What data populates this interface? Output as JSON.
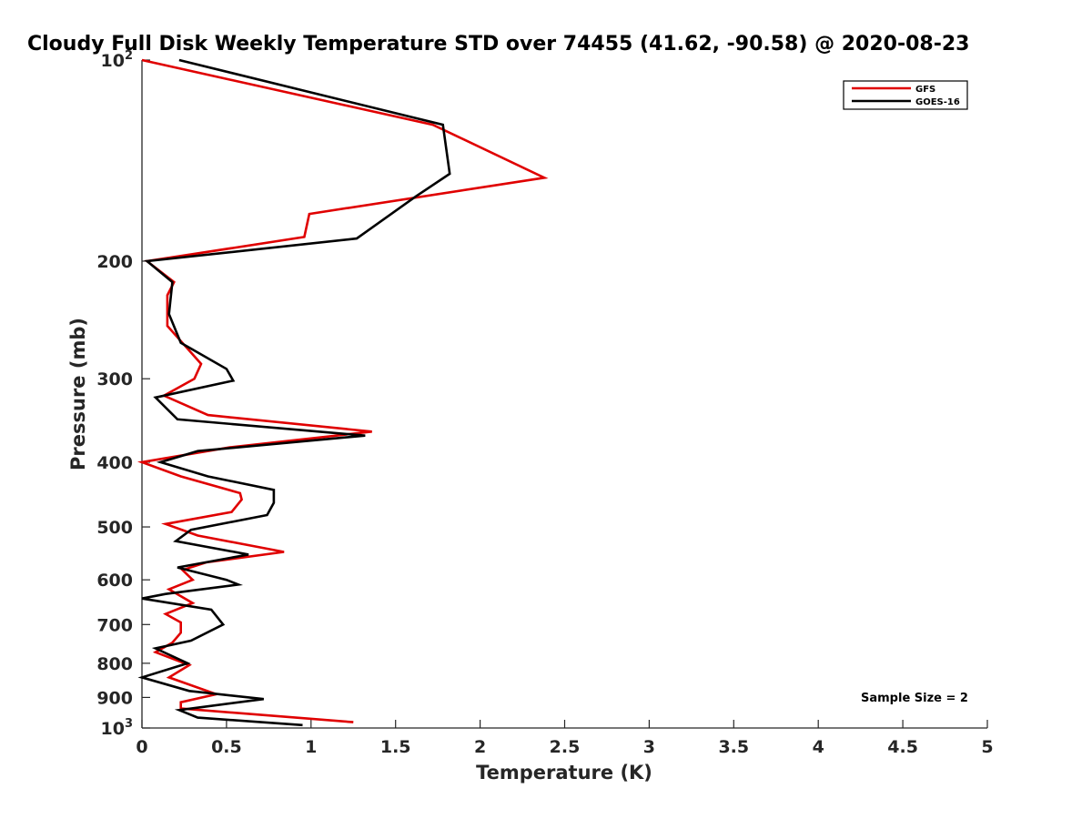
{
  "chart_data": {
    "type": "line",
    "title": "Cloudy Full Disk Weekly Temperature STD over 74455 (41.62, -90.58) @ 2020-08-23",
    "xlabel": "Temperature (K)",
    "ylabel": "Pressure (mb)",
    "xlim": [
      0,
      5
    ],
    "ylim": [
      100,
      1000
    ],
    "y_scale": "log",
    "y_reversed": true,
    "grid": false,
    "legend_position": "top-right",
    "x_ticks": [
      "0",
      "0.5",
      "1",
      "1.5",
      "2",
      "2.5",
      "3",
      "3.5",
      "4",
      "4.5",
      "5"
    ],
    "x_tick_values": [
      0,
      0.5,
      1,
      1.5,
      2,
      2.5,
      3,
      3.5,
      4,
      4.5,
      5
    ],
    "y_ticks": [
      {
        "value": 100,
        "base": "10",
        "exp": "2"
      },
      {
        "value": 200,
        "base": "200",
        "exp": ""
      },
      {
        "value": 300,
        "base": "300",
        "exp": ""
      },
      {
        "value": 400,
        "base": "400",
        "exp": ""
      },
      {
        "value": 500,
        "base": "500",
        "exp": ""
      },
      {
        "value": 600,
        "base": "600",
        "exp": ""
      },
      {
        "value": 700,
        "base": "700",
        "exp": ""
      },
      {
        "value": 800,
        "base": "800",
        "exp": ""
      },
      {
        "value": 900,
        "base": "900",
        "exp": ""
      },
      {
        "value": 1000,
        "base": "10",
        "exp": "3"
      }
    ],
    "annotation": "Sample Size = 2",
    "series": [
      {
        "name": "GFS",
        "color": "#e00000",
        "points": [
          [
            0.0,
            100
          ],
          [
            1.72,
            125
          ],
          [
            2.38,
            150
          ],
          [
            0.99,
            170
          ],
          [
            0.96,
            184
          ],
          [
            0.03,
            200
          ],
          [
            0.19,
            215
          ],
          [
            0.15,
            225
          ],
          [
            0.15,
            250
          ],
          [
            0.35,
            285
          ],
          [
            0.31,
            300
          ],
          [
            0.13,
            318
          ],
          [
            0.39,
            340
          ],
          [
            1.36,
            360
          ],
          [
            0.52,
            380
          ],
          [
            0.0,
            400
          ],
          [
            0.23,
            420
          ],
          [
            0.58,
            445
          ],
          [
            0.59,
            455
          ],
          [
            0.53,
            475
          ],
          [
            0.14,
            495
          ],
          [
            0.33,
            515
          ],
          [
            0.84,
            545
          ],
          [
            0.38,
            565
          ],
          [
            0.24,
            580
          ],
          [
            0.3,
            600
          ],
          [
            0.16,
            620
          ],
          [
            0.3,
            650
          ],
          [
            0.14,
            675
          ],
          [
            0.23,
            695
          ],
          [
            0.23,
            720
          ],
          [
            0.18,
            745
          ],
          [
            0.08,
            770
          ],
          [
            0.28,
            805
          ],
          [
            0.16,
            840
          ],
          [
            0.44,
            890
          ],
          [
            0.23,
            915
          ],
          [
            0.23,
            935
          ],
          [
            1.25,
            980
          ]
        ]
      },
      {
        "name": "GOES-16",
        "color": "#000000",
        "points": [
          [
            0.22,
            100
          ],
          [
            1.78,
            125
          ],
          [
            1.82,
            148
          ],
          [
            1.62,
            160
          ],
          [
            1.27,
            185
          ],
          [
            0.03,
            200
          ],
          [
            0.18,
            215
          ],
          [
            0.16,
            240
          ],
          [
            0.23,
            265
          ],
          [
            0.5,
            290
          ],
          [
            0.54,
            302
          ],
          [
            0.08,
            320
          ],
          [
            0.21,
            345
          ],
          [
            1.32,
            365
          ],
          [
            0.33,
            385
          ],
          [
            0.11,
            400
          ],
          [
            0.39,
            420
          ],
          [
            0.78,
            440
          ],
          [
            0.78,
            460
          ],
          [
            0.74,
            480
          ],
          [
            0.29,
            505
          ],
          [
            0.2,
            525
          ],
          [
            0.63,
            550
          ],
          [
            0.21,
            575
          ],
          [
            0.5,
            600
          ],
          [
            0.57,
            610
          ],
          [
            0.14,
            630
          ],
          [
            0.0,
            640
          ],
          [
            0.41,
            665
          ],
          [
            0.48,
            700
          ],
          [
            0.29,
            740
          ],
          [
            0.08,
            760
          ],
          [
            0.27,
            800
          ],
          [
            0.0,
            840
          ],
          [
            0.28,
            880
          ],
          [
            0.72,
            905
          ],
          [
            0.22,
            940
          ],
          [
            0.33,
            965
          ],
          [
            0.95,
            990
          ]
        ]
      }
    ]
  }
}
